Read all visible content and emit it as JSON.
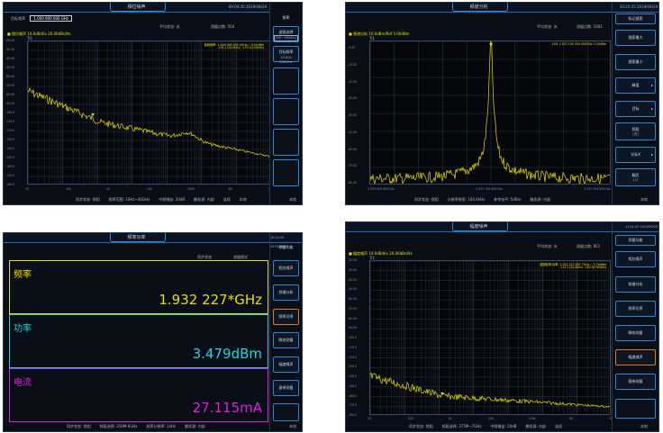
{
  "colors": {
    "trace": "#e6e000",
    "accent_blue": "#2b87d1",
    "active_orange": "#e07a1f",
    "freq": "#e6e000",
    "power": "#22d4e0",
    "current": "#e020e0"
  },
  "panels": {
    "top_left": {
      "title": "相位噪声",
      "time": "09:04:35 2019/09/29",
      "center_freq_label": "目标频率",
      "center_freq_value": "1.000 000 000 GHz",
      "avg_label": "平均状态: 关",
      "points_label": "测量点数: 504",
      "legend": "■ 相位噪声 10.0dB/div 20.00dBc/Hz",
      "trace_tag": "Tr1",
      "readout1": "载频频率: 1.000 000 000 0GHz / -0.91dBm",
      "readout2": "-101.1(10.0kHz)     -137.0(100kHz)",
      "y_ticks": [
        "-20.00",
        "-30.00",
        "-40.00",
        "-50.00",
        "-60.00",
        "-70.00",
        "-80.00",
        "-90.00",
        "-100.0",
        "-110.0",
        "-120.0",
        "-130.0",
        "-140.0",
        "-150.0",
        "-160.0",
        "-170.0",
        "-180.0"
      ],
      "x_ticks": [
        "10",
        "100",
        "1k",
        "10k",
        "100k",
        "1M",
        "10M"
      ],
      "status": [
        "同步状态: 锁相",
        "频率范围: 10Hz~40GHz",
        "中频增益: 20dB",
        "触发源: 内部",
        "连续",
        "本地"
      ],
      "sidebar": {
        "title": "频率",
        "btn1": "波段选择",
        "btn1_sub": "[6G~40GHz]",
        "btn2": "目标频率",
        "btn2_sub": "10.000 000GHz"
      }
    },
    "top_right": {
      "title": "频谱分析",
      "time": "10:23:35 2019/09/29",
      "avg_label": "平均状态: 关",
      "points_label": "测量点数: 1001",
      "legend": "■ 频谱分析 10.0dBm/Ref 5.00dBm",
      "trace_tag": "Tr1",
      "readout": "-1M1 1.932 100 000 000GHz          3.25dBm",
      "y_ticks": [
        "-5.00",
        "-15.00",
        "-25.00",
        "-35.00",
        "-45.00",
        "-55.00",
        "-65.00",
        "-75.00",
        "-85.00"
      ],
      "x_ticks": [
        "1.932 000 000GHz",
        "1.932 100 000GHz",
        "1.932 200 000GHz"
      ],
      "status": [
        "同步状态: 锁相",
        "分辨率带宽: 100.0kHz",
        "参考电平: 5dBm",
        "触发源: 内部",
        "本地"
      ],
      "sidebar": {
        "title": "标记搜索",
        "b1": "搜索最大",
        "b2": "搜索最小",
        "b3": "峰值",
        "b4": "目标",
        "b5": "频段",
        "b5_sub": "[关]",
        "b6": "光标X",
        "b7": "翻页",
        "b7_sub": "1/2"
      }
    },
    "bottom_left": {
      "title": "频率功率",
      "time": "10:24:55 2019/09/29",
      "status_top": [
        "同步状态",
        "测量模式"
      ],
      "freq_label": "频率",
      "freq_value": "1.932 227*GHz",
      "power_label": "功率",
      "power_value": "3.479dBm",
      "current_label": "电流",
      "current_value": "27.115mA",
      "status": [
        "同步状态: 锁相",
        "频段选择: 250M-6GHz",
        "频率分辨率: 1kHz",
        "触发源: 内部",
        "本地"
      ],
      "sidebar": {
        "title": "测量功能",
        "b1": "相位噪声",
        "b2": "频谱分析",
        "b3": "频率功率",
        "b4": "瞬态测量",
        "b5": "幅度噪声",
        "b6": "基带测量"
      }
    },
    "bottom_right": {
      "title": "幅度噪声",
      "time": "11:41:09 2019/09/29",
      "avg_label": "平均状态: 关",
      "points_label": "测量点数: 851",
      "legend": "■ 幅度噪声 10.0dB/div 20.00dBc/Hz",
      "trace_tag": "Tr1",
      "readout1": "载频频率/功率: 1.932 227 467 7GHz / -3.70dBm",
      "readout2": "-141.1(10.0kHz)        -155.9(100kHz)",
      "y_ticks": [
        "-20.00",
        "-30.00",
        "-40.00",
        "-50.00",
        "-60.00",
        "-70.00",
        "-80.00",
        "-90.00",
        "-100.0",
        "-110.0",
        "-120.0",
        "-130.0",
        "-140.0",
        "-150.0",
        "-160.0",
        "-170.0",
        "-180.0"
      ],
      "x_ticks": [
        "10",
        "100",
        "1k",
        "10k",
        "100k",
        "1M",
        "10M"
      ],
      "status": [
        "同步状态: 锁相",
        "频段选择: 375M~7GHz",
        "中频增益: 20dB",
        "触发源: 内部",
        "连续",
        "本地"
      ],
      "sidebar": {
        "title": "测量功能",
        "b1": "相位噪声",
        "b2": "频谱分析",
        "b3": "频率功率",
        "b4": "瞬态测量",
        "b5": "幅度噪声",
        "b6": "基带测量"
      }
    }
  }
}
